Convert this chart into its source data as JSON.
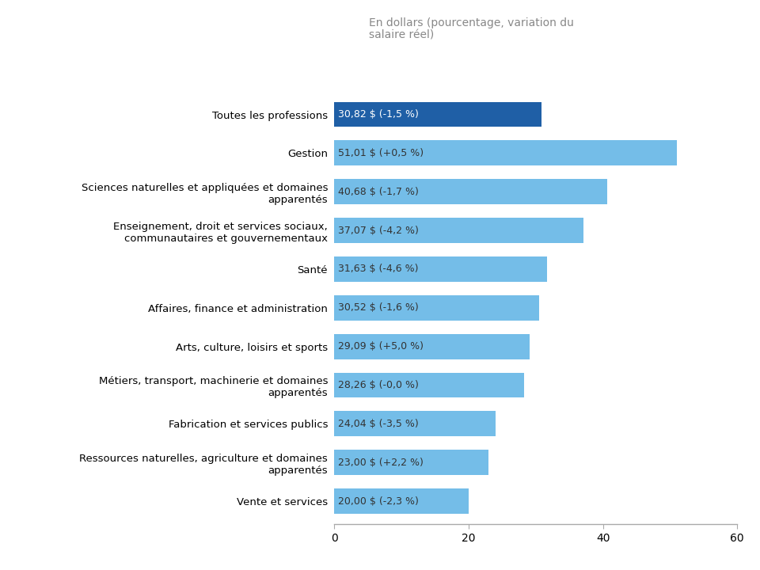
{
  "categories": [
    "Toutes les professions",
    "Gestion",
    "Sciences naturelles et appliquées et domaines\napparentés",
    "Enseignement, droit et services sociaux,\ncommunautaires et gouvernementaux",
    "Santé",
    "Affaires, finance et administration",
    "Arts, culture, loisirs et sports",
    "Métiers, transport, machinerie et domaines\napparentés",
    "Fabrication et services publics",
    "Ressources naturelles, agriculture et domaines\napparentés",
    "Vente et services"
  ],
  "values": [
    30.82,
    51.01,
    40.68,
    37.07,
    31.63,
    30.52,
    29.09,
    28.26,
    24.04,
    23.0,
    20.0
  ],
  "labels": [
    "30,82 $ (-1,5 %)",
    "51,01 $ (+0,5 %)",
    "40,68 $ (-1,7 %)",
    "37,07 $ (-4,2 %)",
    "31,63 $ (-4,6 %)",
    "30,52 $ (-1,6 %)",
    "29,09 $ (+5,0 %)",
    "28,26 $ (-0,0 %)",
    "24,04 $ (-3,5 %)",
    "23,00 $ (+2,2 %)",
    "20,00 $ (-2,3 %)"
  ],
  "bar_colors": [
    "#1f5fa6",
    "#74bde8",
    "#74bde8",
    "#74bde8",
    "#74bde8",
    "#74bde8",
    "#74bde8",
    "#74bde8",
    "#74bde8",
    "#74bde8",
    "#74bde8"
  ],
  "label_colors": [
    "#ffffff",
    "#333333",
    "#333333",
    "#333333",
    "#333333",
    "#333333",
    "#333333",
    "#333333",
    "#333333",
    "#333333",
    "#333333"
  ],
  "subtitle": "En dollars (pourcentage, variation du\nsalaire réel)",
  "xlim": [
    0,
    60
  ],
  "xticks": [
    0,
    20,
    40,
    60
  ],
  "background_color": "#ffffff",
  "bar_height": 0.65
}
